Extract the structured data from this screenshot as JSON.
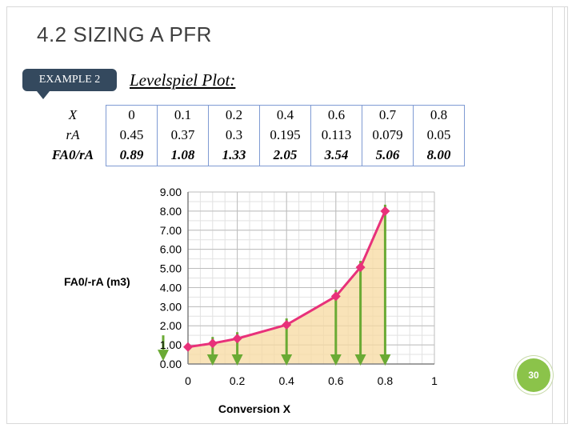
{
  "slide": {
    "title": "4.2 SIZING A PFR",
    "badge": "EXAMPLE 2",
    "subtitle": "Levelspiel Plot:",
    "page_number": "30"
  },
  "table": {
    "row_labels": [
      "X",
      "rA",
      "FA0/rA"
    ],
    "columns": [
      {
        "X": "0",
        "rA": "0.45",
        "ratio": "0.89"
      },
      {
        "X": "0.1",
        "rA": "0.37",
        "ratio": "1.08"
      },
      {
        "X": "0.2",
        "rA": "0.3",
        "ratio": "1.33"
      },
      {
        "X": "0.4",
        "rA": "0.195",
        "ratio": "2.05"
      },
      {
        "X": "0.6",
        "rA": "0.113",
        "ratio": "3.54"
      },
      {
        "X": "0.7",
        "rA": "0.079",
        "ratio": "5.06"
      },
      {
        "X": "0.8",
        "rA": "0.05",
        "ratio": "8.00"
      }
    ]
  },
  "chart_data": {
    "type": "area",
    "xlabel": "Conversion X",
    "ylabel": "FA0/-rA (m3)",
    "xlim": [
      0,
      1
    ],
    "ylim": [
      0,
      9
    ],
    "x_ticks": [
      "0",
      "0.2",
      "0.4",
      "0.6",
      "0.8",
      "1"
    ],
    "y_ticks": [
      "0.00",
      "1.00",
      "2.00",
      "3.00",
      "4.00",
      "5.00",
      "6.00",
      "7.00",
      "8.00",
      "9.00"
    ],
    "grid": true,
    "series": [
      {
        "x": [
          0,
          0.1,
          0.2,
          0.4,
          0.6,
          0.7,
          0.8
        ],
        "values": [
          0.89,
          1.08,
          1.33,
          2.05,
          3.54,
          5.06,
          8.0
        ],
        "color": "#e8317a"
      }
    ],
    "fill_color": "#f7d9a0",
    "arrow_color": "#6aaa34",
    "arrows_at_x": [
      0.1,
      0.2,
      0.4,
      0.6,
      0.7,
      0.8
    ]
  }
}
